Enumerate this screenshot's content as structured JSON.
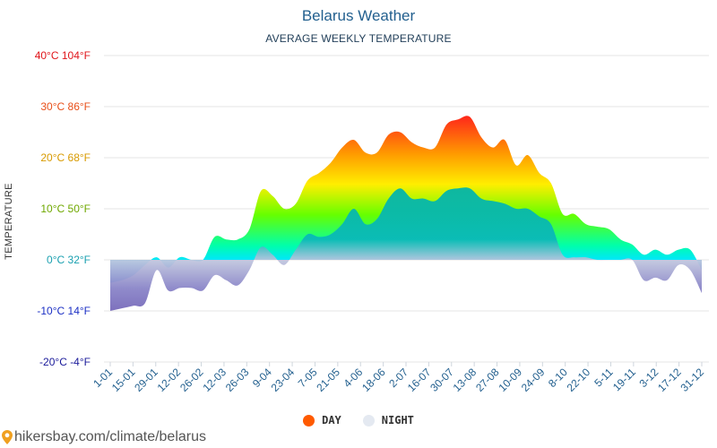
{
  "title": "Belarus Weather",
  "subtitle": "AVERAGE WEEKLY TEMPERATURE",
  "ylabel": "TEMPERATURE",
  "legend": {
    "day": "DAY",
    "night": "NIGHT"
  },
  "footer": {
    "site": "hikersbay.com/climate/belarus"
  },
  "colors": {
    "day_legend": "#ff5a00",
    "night_legend": "#e4e9f1",
    "title": "#23608f",
    "grid": "#e6e6e6"
  },
  "chart_data": {
    "type": "area",
    "title": "Belarus Weather",
    "subtitle": "AVERAGE WEEKLY TEMPERATURE",
    "ylabel": "TEMPERATURE",
    "ylim": [
      -20,
      40
    ],
    "grid": true,
    "legend_position": "bottom",
    "y_ticks": [
      {
        "value": 40,
        "label": "40°C 104°F",
        "color": "#e0151a"
      },
      {
        "value": 30,
        "label": "30°C 86°F",
        "color": "#e8501a"
      },
      {
        "value": 20,
        "label": "20°C 68°F",
        "color": "#d89a00"
      },
      {
        "value": 10,
        "label": "10°C 50°F",
        "color": "#6fa800"
      },
      {
        "value": 0,
        "label": "0°C 32°F",
        "color": "#1aa0b0"
      },
      {
        "value": -10,
        "label": "-10°C 14°F",
        "color": "#1b2fc4"
      },
      {
        "value": -20,
        "label": "-20°C -4°F",
        "color": "#1a1a9a"
      }
    ],
    "x_tick_labels": [
      "1-01",
      "15-01",
      "29-01",
      "12-02",
      "26-02",
      "12-03",
      "26-03",
      "9-04",
      "23-04",
      "7-05",
      "21-05",
      "4-06",
      "18-06",
      "2-07",
      "16-07",
      "30-07",
      "13-08",
      "27-08",
      "10-09",
      "24-09",
      "8-10",
      "22-10",
      "5-11",
      "19-11",
      "3-12",
      "17-12",
      "31-12"
    ],
    "series": [
      {
        "name": "DAY",
        "values": [
          -4.5,
          -4,
          -3,
          -1,
          0.5,
          -1.5,
          0.5,
          0,
          0,
          4.5,
          4,
          4,
          6,
          13.5,
          12.5,
          10,
          11,
          15.5,
          17,
          19,
          22,
          23.5,
          21,
          21,
          24.5,
          25,
          23,
          22,
          22,
          26.5,
          27.5,
          28,
          24,
          22,
          23.5,
          18.5,
          20.5,
          17,
          15,
          9,
          9,
          7,
          6.5,
          6,
          4,
          3,
          1,
          2,
          1,
          2,
          2,
          -2
        ]
      },
      {
        "name": "NIGHT",
        "values": [
          -10,
          -9.5,
          -9,
          -8.5,
          -2,
          -6,
          -5.5,
          -5.5,
          -6,
          -3,
          -4,
          -5,
          -2,
          2.5,
          1,
          -1,
          2,
          5,
          4.5,
          5,
          7,
          10,
          7,
          8,
          12,
          14,
          12,
          12,
          11.5,
          13.5,
          14,
          14,
          12,
          11.5,
          11,
          10,
          10,
          8.5,
          7,
          1,
          0.5,
          0.5,
          0,
          0,
          0,
          0,
          -4,
          -3.5,
          -4,
          -1,
          -2,
          -6.5
        ]
      }
    ]
  }
}
